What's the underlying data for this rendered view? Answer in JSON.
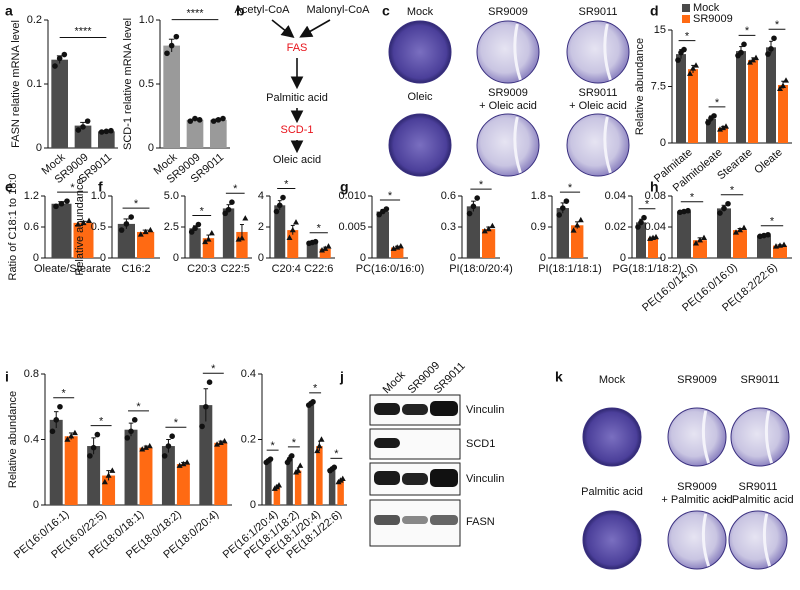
{
  "chart_data": [
    {
      "type": "bar",
      "label": "a",
      "ylabel": "FASN relative mRNA level",
      "categories": [
        "Mock",
        "SR9009",
        "SR9011"
      ],
      "values": [
        0.138,
        0.035,
        0.026
      ],
      "errors": [
        0.006,
        0.005,
        0.001
      ],
      "points": [
        [
          0.128,
          0.14,
          0.146
        ],
        [
          0.028,
          0.033,
          0.042
        ],
        [
          0.025,
          0.026,
          0.027
        ]
      ],
      "color": "#4d4d4d",
      "ylim": [
        0,
        0.2
      ],
      "yticks": [
        0,
        0.1,
        0.2
      ],
      "annotation": "****"
    },
    {
      "type": "bar",
      "ylabel": "SCD-1 relative mRNA level",
      "categories": [
        "Mock",
        "SR9009",
        "SR9011"
      ],
      "values": [
        0.8,
        0.22,
        0.22
      ],
      "errors": [
        0.05,
        0.01,
        0.01
      ],
      "points": [
        [
          0.74,
          0.8,
          0.87
        ],
        [
          0.21,
          0.23,
          0.22
        ],
        [
          0.21,
          0.22,
          0.23
        ]
      ],
      "color": "#9a9a9a",
      "ylim": [
        0,
        1
      ],
      "yticks": [
        0,
        0.5,
        {
          "value": 1,
          "label": "1.0"
        }
      ],
      "annotation": "****"
    },
    {
      "type": "bar",
      "label": "d",
      "ylabel": "Relative abundance",
      "legend": "top-left",
      "categories": [
        "Palmitate",
        "Palmitoleate",
        "Stearate",
        "Oleate"
      ],
      "series": [
        {
          "name": "Mock",
          "color": "#4a4a4a",
          "values": [
            11.8,
            3.2,
            12.2,
            12.7
          ],
          "errors": [
            0.6,
            0.4,
            0.6,
            0.8
          ],
          "points": [
            [
              11,
              12,
              12.4
            ],
            [
              2.7,
              3.3,
              3.6
            ],
            [
              11.6,
              12,
              13.1
            ],
            [
              11.8,
              12.5,
              13.9
            ]
          ]
        },
        {
          "name": "SR9009",
          "color": "#ff6a13",
          "values": [
            9.8,
            2.0,
            11.0,
            7.7
          ],
          "errors": [
            0.5,
            0.2,
            0.3,
            0.5
          ],
          "points": [
            [
              9.2,
              9.9,
              10.3
            ],
            [
              1.8,
              2,
              2.2
            ],
            [
              10.7,
              11,
              11.3
            ],
            [
              7.2,
              7.6,
              8.3
            ]
          ]
        }
      ],
      "ylim": [
        0,
        15
      ],
      "yticks": [
        0,
        7.5,
        15
      ],
      "significance": [
        "*",
        "*",
        "*",
        "*"
      ]
    },
    {
      "type": "bar",
      "label": "e",
      "ylabel": "Ratio of C18:1 to 18:0",
      "categories": [
        "Oleate/Stearate"
      ],
      "series": [
        {
          "color": "#4a4a4a",
          "values": [
            1.05
          ],
          "errors": [
            0.04
          ],
          "points": [
            [
              1.0,
              1.05,
              1.1
            ]
          ]
        },
        {
          "color": "#ff6a13",
          "values": [
            0.68
          ],
          "errors": [
            0.03
          ],
          "points": [
            [
              0.65,
              0.68,
              0.72
            ]
          ]
        }
      ],
      "ylim": [
        0,
        1.2
      ],
      "yticks": [
        0,
        0.6,
        1.2
      ],
      "significance": [
        "*"
      ]
    },
    {
      "type": "bar",
      "label": "f",
      "ylabel": "Relative abundance",
      "categories": [
        "C16:2"
      ],
      "series": [
        {
          "color": "#4a4a4a",
          "values": [
            0.55
          ],
          "errors": [
            0.08
          ],
          "points": [
            [
              0.45,
              0.55,
              0.66
            ]
          ]
        },
        {
          "color": "#ff6a13",
          "values": [
            0.42
          ],
          "errors": [
            0.03
          ],
          "points": [
            [
              0.38,
              0.42,
              0.45
            ]
          ]
        }
      ],
      "ylim": [
        0,
        1
      ],
      "yticks": [
        0,
        0.5,
        {
          "value": 1,
          "label": "1.0"
        }
      ],
      "significance": [
        "*"
      ]
    },
    {
      "type": "bar",
      "categories": [
        "C20:3",
        "C22:5"
      ],
      "series": [
        {
          "color": "#4a4a4a",
          "values": [
            2.4,
            4.0
          ],
          "errors": [
            0.2,
            0.3
          ],
          "points": [
            [
              2.1,
              2.4,
              2.7
            ],
            [
              3.6,
              3.9,
              4.5
            ]
          ]
        },
        {
          "color": "#ff6a13",
          "values": [
            1.6,
            2.1
          ],
          "errors": [
            0.25,
            0.6
          ],
          "points": [
            [
              1.3,
              1.5,
              2.0
            ],
            [
              1.5,
              1.6,
              3.2
            ]
          ]
        }
      ],
      "ylim": [
        0,
        5
      ],
      "yticks": [
        0,
        2.5,
        {
          "value": 5,
          "label": "5.0"
        }
      ],
      "significance": [
        "*",
        "*"
      ]
    },
    {
      "type": "bar",
      "categories": [
        "C20:4",
        "C22:6"
      ],
      "series": [
        {
          "color": "#4a4a4a",
          "values": [
            3.4,
            1.0
          ],
          "errors": [
            0.3,
            0.05
          ],
          "points": [
            [
              3.0,
              3.4,
              3.9
            ],
            [
              0.95,
              1,
              1.05
            ]
          ]
        },
        {
          "color": "#ff6a13",
          "values": [
            1.8,
            0.6
          ],
          "errors": [
            0.3,
            0.1
          ],
          "points": [
            [
              1.3,
              1.8,
              2.3
            ],
            [
              0.5,
              0.6,
              0.75
            ]
          ]
        }
      ],
      "ylim": [
        0,
        4
      ],
      "yticks": [
        0,
        2,
        4
      ],
      "significance": [
        "*",
        "*"
      ]
    },
    {
      "type": "bar",
      "label": "g",
      "categories": [
        "PC(16:0/16:0)"
      ],
      "series": [
        {
          "color": "#4a4a4a",
          "values": [
            0.0075
          ],
          "errors": [
            0.0003
          ],
          "points": [
            [
              0.007,
              0.0075,
              0.0079
            ]
          ]
        },
        {
          "color": "#ff6a13",
          "values": [
            0.0017
          ],
          "errors": [
            0.0002
          ],
          "points": [
            [
              0.0015,
              0.0017,
              0.0019
            ]
          ]
        }
      ],
      "ylim": [
        0,
        0.01
      ],
      "yticks": [
        0,
        0.005,
        {
          "value": 0.01,
          "label": "0.010"
        }
      ],
      "significance": [
        "*"
      ]
    },
    {
      "type": "bar",
      "categories": [
        "PI(18:0/20:4)"
      ],
      "series": [
        {
          "color": "#4a4a4a",
          "values": [
            0.5
          ],
          "errors": [
            0.05
          ],
          "points": [
            [
              0.43,
              0.5,
              0.58
            ]
          ]
        },
        {
          "color": "#ff6a13",
          "values": [
            0.28
          ],
          "errors": [
            0.02
          ],
          "points": [
            [
              0.26,
              0.28,
              0.31
            ]
          ]
        }
      ],
      "ylim": [
        0,
        0.6
      ],
      "yticks": [
        0,
        0.3,
        0.6
      ],
      "significance": [
        "*"
      ]
    },
    {
      "type": "bar",
      "categories": [
        "PI(18:1/18:1)"
      ],
      "series": [
        {
          "color": "#4a4a4a",
          "values": [
            1.45
          ],
          "errors": [
            0.15
          ],
          "points": [
            [
              1.25,
              1.45,
              1.65
            ]
          ]
        },
        {
          "color": "#ff6a13",
          "values": [
            0.95
          ],
          "errors": [
            0.1
          ],
          "points": [
            [
              0.8,
              0.95,
              1.1
            ]
          ]
        }
      ],
      "ylim": [
        0,
        1.8
      ],
      "yticks": [
        0,
        0.9,
        1.8
      ],
      "significance": [
        "*"
      ]
    },
    {
      "type": "bar",
      "categories": [
        "PG(18:1/18:2)"
      ],
      "series": [
        {
          "color": "#4a4a4a",
          "values": [
            0.023
          ],
          "errors": [
            0.002
          ],
          "points": [
            [
              0.02,
              0.023,
              0.026
            ]
          ]
        },
        {
          "color": "#ff6a13",
          "values": [
            0.013
          ],
          "errors": [
            0.0005
          ],
          "points": [
            [
              0.0125,
              0.013,
              0.0135
            ]
          ]
        }
      ],
      "ylim": [
        0,
        0.04
      ],
      "yticks": [
        0,
        0.02,
        0.04
      ],
      "significance": [
        "*"
      ]
    },
    {
      "type": "bar",
      "label": "h",
      "categories": [
        "PE(16:0/14:0)",
        "PE(16:0/16:0)",
        "PE(18:2/22:6)"
      ],
      "series": [
        {
          "color": "#4a4a4a",
          "values": [
            0.06,
            0.064,
            0.029
          ],
          "errors": [
            0.001,
            0.004,
            0.001
          ],
          "points": [
            [
              0.059,
              0.06,
              0.061
            ],
            [
              0.058,
              0.064,
              0.07
            ],
            [
              0.028,
              0.029,
              0.03
            ]
          ]
        },
        {
          "color": "#ff6a13",
          "values": [
            0.023,
            0.036,
            0.016
          ],
          "errors": [
            0.003,
            0.002,
            0.001
          ],
          "points": [
            [
              0.019,
              0.023,
              0.026
            ],
            [
              0.033,
              0.036,
              0.039
            ],
            [
              0.015,
              0.016,
              0.017
            ]
          ]
        }
      ],
      "ylim": [
        0,
        0.08
      ],
      "yticks": [
        0,
        0.04,
        0.08
      ],
      "significance": [
        "*",
        "*",
        "*"
      ]
    },
    {
      "type": "bar",
      "label": "i",
      "ylabel": "Relative abundance",
      "categories": [
        "PE(16:0/16:1)",
        "PE(16:0/22:5)",
        "PE(18:0/18:1)",
        "PE(18:0/18:2)",
        "PE(18:0/20:4)"
      ],
      "series": [
        {
          "color": "#4a4a4a",
          "values": [
            0.52,
            0.36,
            0.46,
            0.36,
            0.61
          ],
          "errors": [
            0.05,
            0.05,
            0.04,
            0.04,
            0.1
          ],
          "points": [
            [
              0.45,
              0.52,
              0.6
            ],
            [
              0.3,
              0.35,
              0.43
            ],
            [
              0.41,
              0.45,
              0.52
            ],
            [
              0.3,
              0.36,
              0.42
            ],
            [
              0.48,
              0.6,
              0.75
            ]
          ]
        },
        {
          "color": "#ff6a13",
          "values": [
            0.42,
            0.18,
            0.35,
            0.25,
            0.38
          ],
          "errors": [
            0.02,
            0.03,
            0.01,
            0.01,
            0.01
          ],
          "points": [
            [
              0.4,
              0.42,
              0.44
            ],
            [
              0.14,
              0.18,
              0.21
            ],
            [
              0.34,
              0.35,
              0.36
            ],
            [
              0.24,
              0.25,
              0.26
            ],
            [
              0.37,
              0.38,
              0.39
            ]
          ]
        }
      ],
      "ylim": [
        0,
        0.8
      ],
      "yticks": [
        0,
        0.4,
        0.8
      ],
      "significance": [
        "*",
        "*",
        "*",
        "*",
        "*"
      ]
    },
    {
      "type": "bar",
      "categories": [
        "PE(16:1/20:4)",
        "PE(18:1/18:2)",
        "PE(18:1/20:4)",
        "PE(18:1/22:6)"
      ],
      "series": [
        {
          "color": "#4a4a4a",
          "values": [
            0.135,
            0.14,
            0.31,
            0.11
          ],
          "errors": [
            0.005,
            0.01,
            0.005,
            0.005
          ],
          "points": [
            [
              0.13,
              0.135,
              0.14
            ],
            [
              0.13,
              0.14,
              0.15
            ],
            [
              0.305,
              0.31,
              0.315
            ],
            [
              0.105,
              0.11,
              0.115
            ]
          ]
        },
        {
          "color": "#ff6a13",
          "values": [
            0.055,
            0.105,
            0.18,
            0.075
          ],
          "errors": [
            0.005,
            0.008,
            0.015,
            0.004
          ],
          "points": [
            [
              0.05,
              0.055,
              0.06
            ],
            [
              0.1,
              0.105,
              0.12
            ],
            [
              0.165,
              0.18,
              0.2
            ],
            [
              0.07,
              0.075,
              0.08
            ]
          ]
        }
      ],
      "ylim": [
        0,
        0.4
      ],
      "yticks": [
        0,
        0.2,
        0.4
      ],
      "significance": [
        "*",
        "*",
        "*",
        "*"
      ]
    }
  ],
  "pathway": {
    "label": "b",
    "substrates": [
      "Acetyl-CoA",
      "Malonyl-CoA"
    ],
    "steps": [
      "FAS",
      "Palmitic acid",
      "SCD-1",
      "Oleic acid"
    ]
  },
  "colony_assays": [
    {
      "label": "c",
      "conditions": [
        [
          "Mock"
        ],
        [
          "SR9009"
        ],
        [
          "SR9011"
        ],
        [
          "Oleic"
        ],
        [
          "SR9009",
          "+ Oleic acid"
        ],
        [
          "SR9011",
          "+ Oleic acid"
        ]
      ]
    },
    {
      "label": "k",
      "conditions": [
        [
          "Mock"
        ],
        [
          "SR9009"
        ],
        [
          "SR9011"
        ],
        [
          "Palmitic acid"
        ],
        [
          "SR9009",
          "+ Palmitic acid"
        ],
        [
          "SR9011",
          "+ Palmitic acid"
        ]
      ]
    }
  ],
  "western_blot": {
    "label": "j",
    "lanes": [
      "Mock",
      "SR9009",
      "SR9011"
    ],
    "bands": [
      "Vinculin",
      "SCD1",
      "Vinculin",
      "FASN"
    ]
  }
}
